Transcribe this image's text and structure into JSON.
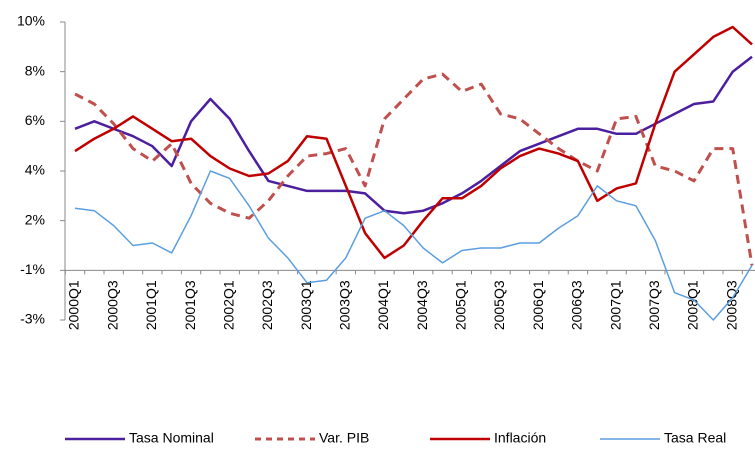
{
  "chart_data": {
    "type": "line",
    "categories": [
      "2000Q1",
      null,
      "2000Q3",
      null,
      "2001Q1",
      null,
      "2001Q3",
      null,
      "2002Q1",
      null,
      "2002Q3",
      null,
      "2003Q1",
      null,
      "2003Q3",
      null,
      "2004Q1",
      null,
      "2004Q3",
      null,
      "2005Q1",
      null,
      "2005Q3",
      null,
      "2006Q1",
      null,
      "2006Q3",
      null,
      "2007Q1",
      null,
      "2007Q3",
      null,
      "2008Q1",
      null,
      "2008Q3",
      null
    ],
    "ylim": [
      -2.5,
      9.5
    ],
    "yticks": [
      {
        "value": 9.5,
        "label": "10%"
      },
      {
        "value": 7.5,
        "label": "8%"
      },
      {
        "value": 5.5,
        "label": "6%"
      },
      {
        "value": 3.5,
        "label": "4%"
      },
      {
        "value": 1.5,
        "label": "2%"
      },
      {
        "value": -0.5,
        "label": "-1%"
      },
      {
        "value": -2.5,
        "label": "-3%"
      }
    ],
    "legend": "bottom",
    "series": [
      {
        "name": "Tasa Nominal",
        "color": "#4b1f9e",
        "style": "solid",
        "width": 2.5,
        "values": [
          5.2,
          5.5,
          5.2,
          4.9,
          4.5,
          3.7,
          5.5,
          6.4,
          5.6,
          4.3,
          3.1,
          2.9,
          2.7,
          2.7,
          2.7,
          2.6,
          1.9,
          1.8,
          1.9,
          2.2,
          2.6,
          3.1,
          3.7,
          4.3,
          4.6,
          4.9,
          5.2,
          5.2,
          5.0,
          5.0,
          5.4,
          5.8,
          6.2,
          6.3,
          7.5,
          8.1
        ]
      },
      {
        "name": "Var. PIB",
        "color": "#c0504d",
        "style": "dashed",
        "width": 3,
        "values": [
          6.6,
          6.2,
          5.4,
          4.4,
          3.9,
          4.6,
          3.0,
          2.2,
          1.8,
          1.6,
          2.3,
          3.3,
          4.1,
          4.2,
          4.4,
          2.9,
          5.6,
          6.4,
          7.2,
          7.4,
          6.7,
          7.0,
          5.8,
          5.6,
          5.0,
          4.4,
          3.9,
          3.5,
          5.6,
          5.7,
          3.7,
          3.5,
          3.1,
          4.4,
          4.4,
          -0.3
        ]
      },
      {
        "name": "Inflación",
        "color": "#c00000",
        "style": "solid",
        "width": 2.5,
        "values": [
          4.3,
          4.8,
          5.2,
          5.7,
          5.2,
          4.7,
          4.8,
          4.1,
          3.6,
          3.3,
          3.4,
          3.9,
          4.9,
          4.8,
          2.9,
          1.0,
          0.0,
          0.5,
          1.5,
          2.4,
          2.4,
          2.9,
          3.6,
          4.1,
          4.4,
          4.2,
          3.9,
          2.3,
          2.8,
          3.0,
          5.4,
          7.5,
          8.2,
          8.9,
          9.3,
          8.6
        ]
      },
      {
        "name": "Tasa Real",
        "color": "#5b9fdf",
        "style": "solid",
        "width": 1.5,
        "values": [
          2.0,
          1.9,
          1.3,
          0.5,
          0.6,
          0.2,
          1.7,
          3.5,
          3.2,
          2.1,
          0.8,
          0.0,
          -1.0,
          -0.9,
          0.0,
          1.6,
          1.9,
          1.3,
          0.4,
          -0.2,
          0.3,
          0.4,
          0.4,
          0.6,
          0.6,
          1.2,
          1.7,
          2.9,
          2.3,
          2.1,
          0.7,
          -1.4,
          -1.7,
          -2.5,
          -1.6,
          -0.3
        ]
      }
    ]
  }
}
